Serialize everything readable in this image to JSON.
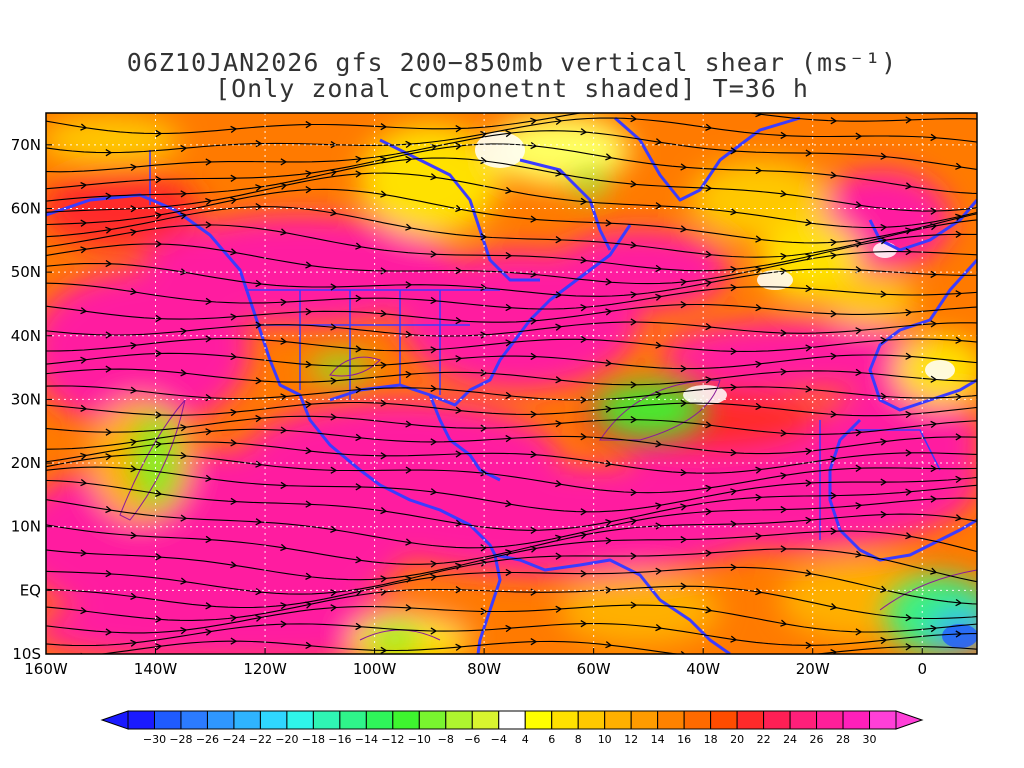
{
  "title": {
    "line1": "06Z10JAN2026 gfs 200−850mb vertical shear (ms⁻¹)",
    "line2": "[Only zonal componetnt shaded] T=36 h"
  },
  "map": {
    "projection": "lat-lon",
    "lon_range": [
      -160,
      10
    ],
    "lat_range": [
      -10,
      75
    ],
    "lon_ticks": [
      {
        "value": -160,
        "label": "160W"
      },
      {
        "value": -140,
        "label": "140W"
      },
      {
        "value": -120,
        "label": "120W"
      },
      {
        "value": -100,
        "label": "100W"
      },
      {
        "value": -80,
        "label": "80W"
      },
      {
        "value": -60,
        "label": "60W"
      },
      {
        "value": -40,
        "label": "40W"
      },
      {
        "value": -20,
        "label": "20W"
      },
      {
        "value": 0,
        "label": "0"
      }
    ],
    "lat_ticks": [
      {
        "value": 70,
        "label": "70N"
      },
      {
        "value": 60,
        "label": "60N"
      },
      {
        "value": 50,
        "label": "50N"
      },
      {
        "value": 40,
        "label": "40N"
      },
      {
        "value": 30,
        "label": "30N"
      },
      {
        "value": 20,
        "label": "20N"
      },
      {
        "value": 10,
        "label": "10N"
      },
      {
        "value": 0,
        "label": "EQ"
      },
      {
        "value": -10,
        "label": "10S"
      }
    ],
    "gridlines": true,
    "coastline_color": "#3b3bff",
    "contour_color": "#8a1a9a",
    "streamline_color": "#000000"
  },
  "colorbar": {
    "levels": [
      "-30",
      "-28",
      "-26",
      "-24",
      "-22",
      "-20",
      "-18",
      "-16",
      "-14",
      "-12",
      "-10",
      "-8",
      "-6",
      "-4",
      "4",
      "6",
      "8",
      "10",
      "12",
      "14",
      "16",
      "18",
      "20",
      "22",
      "24",
      "26",
      "28",
      "30"
    ],
    "colors": [
      "#1a1aff",
      "#1f5bff",
      "#2b7bff",
      "#2f97ff",
      "#2fb4ff",
      "#2fd7ff",
      "#2ff5ea",
      "#2ff5b4",
      "#2ff58a",
      "#2ff55a",
      "#3ef52f",
      "#79f52f",
      "#aef52f",
      "#d8f52f",
      "#ffffff",
      "#ffff00",
      "#ffe100",
      "#ffc800",
      "#ffb000",
      "#ff9b00",
      "#ff8200",
      "#ff6a00",
      "#ff4c00",
      "#ff2a2a",
      "#ff1f55",
      "#ff1f7a",
      "#ff1f9a",
      "#ff1fba",
      "#ff3fd8"
    ],
    "under_color": "#1a1aff",
    "over_color": "#ff3fd8"
  }
}
